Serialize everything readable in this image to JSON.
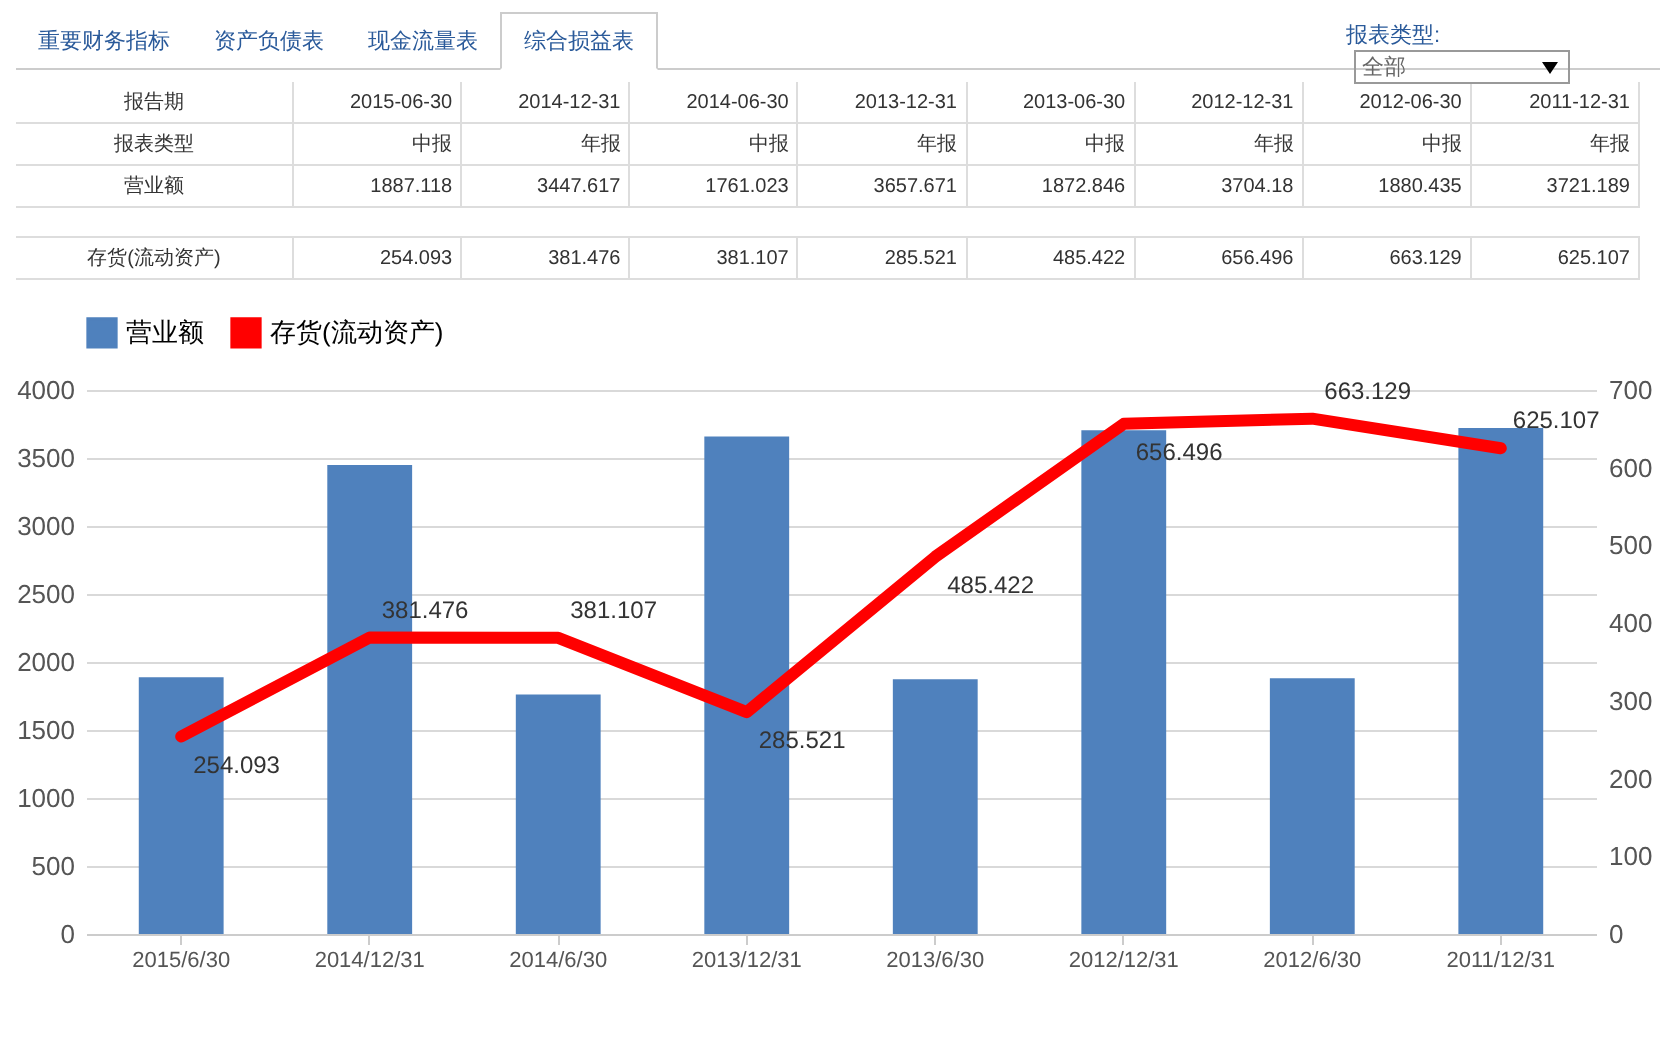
{
  "chart_data": {
    "type": "bar",
    "categories": [
      "2015/6/30",
      "2014/12/31",
      "2014/6/30",
      "2013/12/31",
      "2013/6/30",
      "2012/12/31",
      "2012/6/30",
      "2011/12/31"
    ],
    "series": [
      {
        "name": "营业额",
        "color": "#4f81bd",
        "values": [
          1887.118,
          3447.617,
          1761.023,
          3657.671,
          1872.846,
          3704.18,
          1880.435,
          3721.189
        ]
      },
      {
        "name": "存货(流动资产)",
        "type": "line",
        "axis": "y2",
        "color": "#ff0000",
        "values": [
          254.093,
          381.476,
          381.107,
          285.521,
          485.422,
          656.496,
          663.129,
          625.107
        ],
        "value_labels": [
          "254.093",
          "381.476",
          "381.107",
          "285.521",
          "485.422",
          "656.496",
          "663.129",
          "625.107"
        ]
      }
    ],
    "ylim": [
      0,
      4000
    ],
    "yticks": [
      0,
      500,
      1000,
      1500,
      2000,
      2500,
      3000,
      3500,
      4000
    ],
    "y2lim": [
      0,
      700
    ],
    "y2ticks": [
      0,
      100,
      200,
      300,
      400,
      500,
      600,
      700
    ],
    "grid": "y",
    "legend": "top",
    "marker": "none",
    "line_style": "solid",
    "annotations": [
      "重要财务指标",
      "资产负债表",
      "现金流量表",
      "综合损益表",
      "报表类型:",
      "全部",
      "报告期",
      "2015-06-30",
      "2014-12-31",
      "2014-06-30",
      "2013-12-31",
      "2013-06-30",
      "2012-12-31",
      "2012-06-30",
      "2011-12-31",
      "报表类型",
      "中报",
      "年报",
      "中报",
      "年报",
      "中报",
      "年报",
      "中报",
      "年报",
      "1887.118",
      "3447.617",
      "1761.023",
      "3657.671",
      "1872.846",
      "3704.18",
      "1880.435",
      "3721.189",
      "254.093",
      "381.476",
      "381.107",
      "285.521",
      "485.422",
      "656.496",
      "663.129",
      "625.107"
    ]
  }
}
